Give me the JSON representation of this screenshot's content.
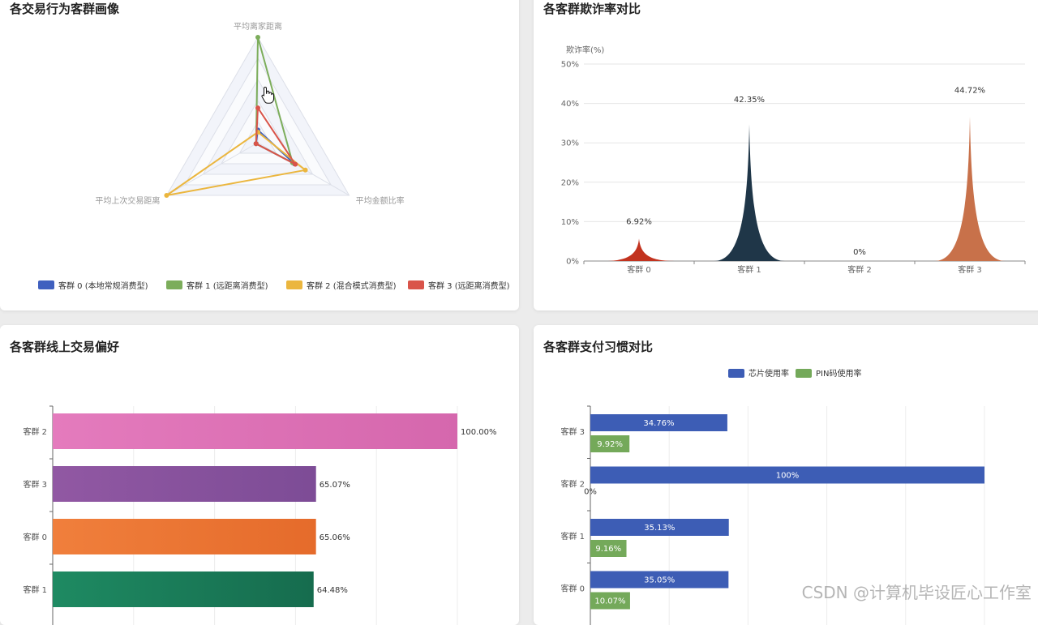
{
  "panels": {
    "radar_title": "各交易行为客群画像",
    "fraud_title": "各客群欺诈率对比",
    "online_title": "各客群线上交易偏好",
    "payment_title": "各客群支付习惯对比"
  },
  "watermark": "CSDN @计算机毕设匠心工作室",
  "chart_data": [
    {
      "id": "radar",
      "type": "radar",
      "title": "各交易行为客群画像",
      "indicators": [
        "平均离家距离",
        "平均金额比率",
        "平均上次交易距离"
      ],
      "scale_max": 1.0,
      "series": [
        {
          "name": "客群 0 (本地常规消费型)",
          "color": "#4060bf",
          "values": [
            0.12,
            0.4,
            0.02
          ]
        },
        {
          "name": "客群 1 (远距离消费型)",
          "color": "#7cad5b",
          "values": [
            1.0,
            0.38,
            0.02
          ]
        },
        {
          "name": "客群 2 (混合模式消费型)",
          "color": "#ebb63e",
          "values": [
            0.1,
            0.52,
            1.0
          ]
        },
        {
          "name": "客群 3 (远距离消费型)",
          "color": "#d9544a",
          "values": [
            0.33,
            0.41,
            0.02
          ]
        }
      ],
      "legend_position": "bottom"
    },
    {
      "id": "fraud",
      "type": "pictorial-spike",
      "title": "各客群欺诈率对比",
      "ylabel": "欺诈率(%)",
      "ylim": [
        0,
        50
      ],
      "yticks": [
        "0%",
        "10%",
        "20%",
        "30%",
        "40%",
        "50%"
      ],
      "categories": [
        "客群 0",
        "客群 1",
        "客群 2",
        "客群 3"
      ],
      "values": [
        6.92,
        42.35,
        0,
        44.72
      ],
      "labels": [
        "6.92%",
        "42.35%",
        "0%",
        "44.72%"
      ],
      "colors": [
        "#c2331f",
        "#1f3648",
        "#999999",
        "#c8714a"
      ]
    },
    {
      "id": "online",
      "type": "bar",
      "orientation": "horizontal",
      "title": "各客群线上交易偏好",
      "xlim": [
        0,
        100
      ],
      "categories": [
        "客群 2",
        "客群 3",
        "客群 0",
        "客群 1"
      ],
      "values": [
        100.0,
        65.07,
        65.06,
        64.48
      ],
      "labels": [
        "100.00%",
        "65.07%",
        "65.06%",
        "64.48%"
      ],
      "colors": [
        [
          "#e47bbd",
          "#d567ad"
        ],
        [
          "#9158a3",
          "#7d4c96"
        ],
        [
          "#f07f3c",
          "#e56b2b"
        ],
        [
          "#1e8a62",
          "#166c4e"
        ]
      ]
    },
    {
      "id": "payment",
      "type": "bar",
      "orientation": "horizontal",
      "title": "各客群支付习惯对比",
      "xlim": [
        0,
        100
      ],
      "categories": [
        "客群 3",
        "客群 2",
        "客群 1",
        "客群 0"
      ],
      "series": [
        {
          "name": "芯片使用率",
          "color": "#3d5db5",
          "values": [
            34.76,
            100,
            35.13,
            35.05
          ],
          "labels": [
            "34.76%",
            "100%",
            "35.13%",
            "35.05%"
          ]
        },
        {
          "name": "PIN码使用率",
          "color": "#74a95a",
          "values": [
            9.92,
            0,
            9.16,
            10.07
          ],
          "labels": [
            "9.92%",
            "0%",
            "9.16%",
            "10.07%"
          ]
        }
      ],
      "legend_position": "top-center"
    }
  ]
}
